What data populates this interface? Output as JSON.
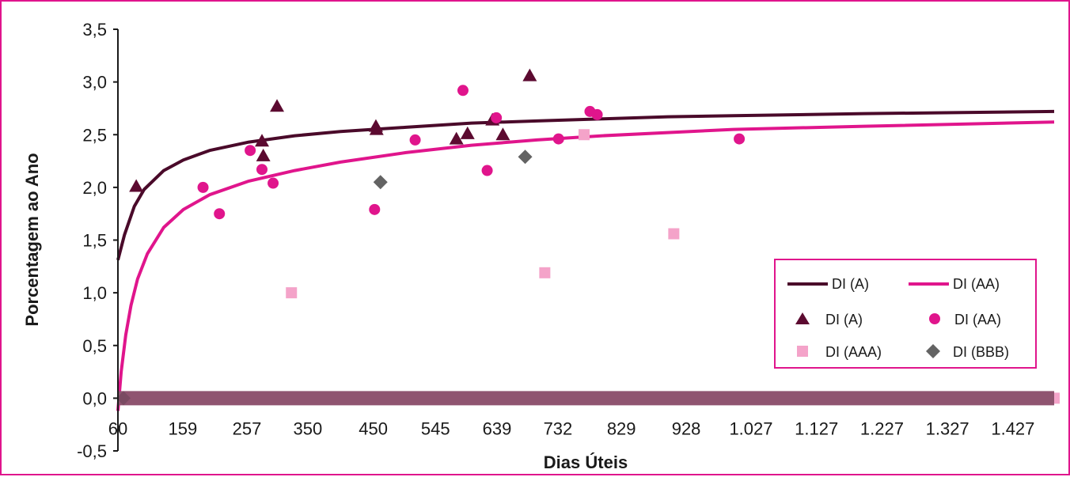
{
  "chart_data": {
    "type": "scatter",
    "xlabel": "Dias Úteis",
    "ylabel": "Porcentagem ao Ano",
    "xlim": [
      60,
      1490
    ],
    "ylim": [
      -0.5,
      3.5
    ],
    "x_ticks": [
      {
        "value": 60,
        "label": "60"
      },
      {
        "value": 159,
        "label": "159"
      },
      {
        "value": 257,
        "label": "257"
      },
      {
        "value": 350,
        "label": "350"
      },
      {
        "value": 450,
        "label": "450"
      },
      {
        "value": 545,
        "label": "545"
      },
      {
        "value": 639,
        "label": "639"
      },
      {
        "value": 732,
        "label": "732"
      },
      {
        "value": 829,
        "label": "829"
      },
      {
        "value": 928,
        "label": "928"
      },
      {
        "value": 1027,
        "label": "1.027"
      },
      {
        "value": 1127,
        "label": "1.127"
      },
      {
        "value": 1227,
        "label": "1.227"
      },
      {
        "value": 1327,
        "label": "1.327"
      },
      {
        "value": 1427,
        "label": "1.427"
      }
    ],
    "y_ticks": [
      {
        "value": 3.5,
        "label": "3,5"
      },
      {
        "value": 3.0,
        "label": "3,0"
      },
      {
        "value": 2.5,
        "label": "2,5"
      },
      {
        "value": 2.0,
        "label": "2,0"
      },
      {
        "value": 1.5,
        "label": "1,5"
      },
      {
        "value": 1.0,
        "label": "1,0"
      },
      {
        "value": 0.5,
        "label": "0,5"
      },
      {
        "value": 0.0,
        "label": "0,0"
      },
      {
        "value": -0.5,
        "label": "-0,5"
      }
    ],
    "legend_position": "right",
    "grid": false,
    "series": [
      {
        "name": "DI (A)",
        "kind": "curve",
        "color": "#4a0a2a",
        "points": [
          [
            60,
            1.31
          ],
          [
            70,
            1.55
          ],
          [
            85,
            1.82
          ],
          [
            100,
            1.98
          ],
          [
            130,
            2.16
          ],
          [
            160,
            2.26
          ],
          [
            200,
            2.35
          ],
          [
            260,
            2.43
          ],
          [
            330,
            2.49
          ],
          [
            400,
            2.53
          ],
          [
            500,
            2.57
          ],
          [
            600,
            2.61
          ],
          [
            700,
            2.63
          ],
          [
            800,
            2.65
          ],
          [
            900,
            2.67
          ],
          [
            1000,
            2.68
          ],
          [
            1200,
            2.7
          ],
          [
            1350,
            2.71
          ],
          [
            1490,
            2.72
          ]
        ]
      },
      {
        "name": "DI (AA)",
        "kind": "curve",
        "color": "#e0158c",
        "points": [
          [
            60,
            -0.12
          ],
          [
            65,
            0.25
          ],
          [
            72,
            0.6
          ],
          [
            80,
            0.88
          ],
          [
            90,
            1.13
          ],
          [
            105,
            1.37
          ],
          [
            130,
            1.62
          ],
          [
            160,
            1.79
          ],
          [
            200,
            1.93
          ],
          [
            260,
            2.06
          ],
          [
            330,
            2.16
          ],
          [
            400,
            2.24
          ],
          [
            500,
            2.33
          ],
          [
            600,
            2.4
          ],
          [
            700,
            2.45
          ],
          [
            800,
            2.49
          ],
          [
            1000,
            2.55
          ],
          [
            1200,
            2.58
          ],
          [
            1490,
            2.62
          ]
        ]
      },
      {
        "name": "DI (A)",
        "kind": "scatter",
        "marker": "triangle",
        "color": "#5c0a30",
        "points": [
          [
            88,
            2.01
          ],
          [
            280,
            2.44
          ],
          [
            282,
            2.3
          ],
          [
            303,
            2.77
          ],
          [
            454,
            2.58
          ],
          [
            455,
            2.55
          ],
          [
            577,
            2.46
          ],
          [
            594,
            2.51
          ],
          [
            632,
            2.64
          ],
          [
            648,
            2.5
          ],
          [
            689,
            3.06
          ]
        ]
      },
      {
        "name": "DI (AA)",
        "kind": "scatter",
        "marker": "circle",
        "color": "#e0158c",
        "points": [
          [
            190,
            2.0
          ],
          [
            215,
            1.75
          ],
          [
            262,
            2.35
          ],
          [
            280,
            2.17
          ],
          [
            297,
            2.04
          ],
          [
            452,
            1.79
          ],
          [
            514,
            2.45
          ],
          [
            587,
            2.92
          ],
          [
            624,
            2.16
          ],
          [
            638,
            2.66
          ],
          [
            733,
            2.46
          ],
          [
            781,
            2.72
          ],
          [
            792,
            2.69
          ],
          [
            1009,
            2.46
          ]
        ]
      },
      {
        "name": "DI (AAA)",
        "kind": "scatter",
        "marker": "square",
        "color": "#f4a3c9",
        "points": [
          [
            325,
            1.0
          ],
          [
            712,
            1.19
          ],
          [
            772,
            2.5
          ],
          [
            909,
            1.56
          ],
          [
            1490,
            0.0
          ]
        ]
      },
      {
        "name": "DI (BBB)",
        "kind": "scatter",
        "marker": "diamond",
        "color": "#636363",
        "points": [
          [
            461,
            2.05
          ],
          [
            682,
            2.29
          ]
        ]
      },
      {
        "name": "",
        "kind": "baseline",
        "color": "#8f5470",
        "x_range": [
          60,
          1490
        ],
        "y": 0.0
      }
    ]
  }
}
